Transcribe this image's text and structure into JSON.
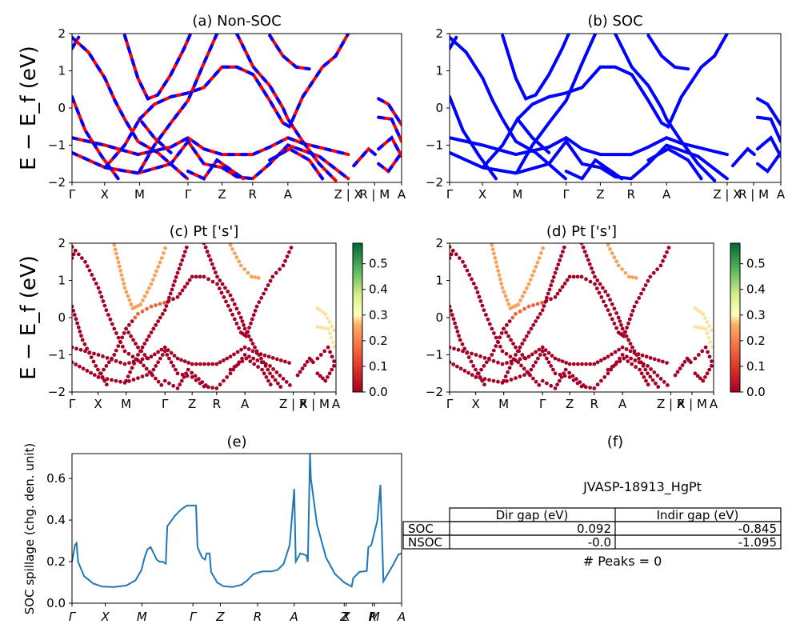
{
  "panels": {
    "a": {
      "title": "(a) Non-SOC"
    },
    "b": {
      "title": "(b) SOC"
    },
    "c": {
      "title": "(c)  Pt ['s']"
    },
    "d": {
      "title": "(d) Pt ['s']"
    },
    "e": {
      "title": "(e)",
      "ylabel": "SOC spillage (chg. den. unit)"
    },
    "f": {
      "title": "(f)"
    }
  },
  "band_ylabel": "E − E_f (eV)",
  "band_yticks": [
    "2",
    "1",
    "0",
    "−1",
    "−2"
  ],
  "kpath_labels": [
    "Γ",
    "X",
    "M",
    "Γ",
    "Z",
    "R",
    "A",
    "Z | X",
    "R | M",
    "A"
  ],
  "colorbar_ticks": [
    "0.5",
    "0.4",
    "0.3",
    "0.2",
    "0.1",
    "0.0"
  ],
  "colors": {
    "nonsoc_band": "#ff0000",
    "soc_band": "#0000ff",
    "spillage_line": "#1f77b4"
  },
  "spillage_yticks": [
    "0.6",
    "0.4",
    "0.2",
    "0.0"
  ],
  "spillage_xticks": [
    "Γ",
    "X",
    "M",
    "Γ",
    "Z",
    "R",
    "A",
    "Z",
    "X",
    "R",
    "M",
    "A"
  ],
  "table": {
    "title": "JVASP-18913_HgPt",
    "headers": [
      "",
      "Dir gap (eV)",
      "Indir gap (eV)"
    ],
    "rows": [
      {
        "label": "SOC",
        "dir": "0.092",
        "indir": "-0.845"
      },
      {
        "label": "NSOC",
        "dir": "-0.0",
        "indir": "-1.095"
      }
    ],
    "peaks": "# Peaks = 0"
  },
  "chart_data": [
    {
      "type": "line",
      "title": "(a) Non-SOC",
      "ylabel": "E − E_f (eV)",
      "ylim": [
        -2,
        2
      ],
      "xticks": [
        "Γ",
        "X",
        "M",
        "Γ",
        "Z",
        "R",
        "A",
        "Z | X",
        "R | M",
        "A"
      ]
    },
    {
      "type": "line",
      "title": "(b) SOC",
      "ylim": [
        -2,
        2
      ],
      "xticks": [
        "Γ",
        "X",
        "M",
        "Γ",
        "Z",
        "R",
        "A",
        "Z | X",
        "R | M",
        "A"
      ]
    },
    {
      "type": "scatter",
      "title": "(c)  Pt ['s']",
      "ylabel": "E − E_f (eV)",
      "ylim": [
        -2,
        2
      ],
      "colorbar_range": [
        0,
        0.58
      ]
    },
    {
      "type": "scatter",
      "title": "(d) Pt ['s']",
      "ylim": [
        -2,
        2
      ],
      "colorbar_range": [
        0,
        0.58
      ]
    },
    {
      "type": "line",
      "title": "(e)",
      "ylabel": "SOC spillage (chg. den. unit)",
      "ylim": [
        0,
        0.72
      ],
      "x": [
        "Γ",
        "X",
        "M",
        "Γ",
        "Z",
        "R",
        "A",
        "Z",
        "X",
        "R",
        "M",
        "A"
      ],
      "spillage_points": [
        [
          0.0,
          0.2
        ],
        [
          0.01,
          0.28
        ],
        [
          0.015,
          0.29
        ],
        [
          0.02,
          0.2
        ],
        [
          0.04,
          0.13
        ],
        [
          0.07,
          0.095
        ],
        [
          0.1,
          0.08
        ],
        [
          0.14,
          0.078
        ],
        [
          0.18,
          0.085
        ],
        [
          0.21,
          0.11
        ],
        [
          0.23,
          0.16
        ],
        [
          0.24,
          0.22
        ],
        [
          0.25,
          0.26
        ],
        [
          0.26,
          0.27
        ],
        [
          0.27,
          0.24
        ],
        [
          0.28,
          0.21
        ],
        [
          0.29,
          0.2
        ],
        [
          0.3,
          0.2
        ],
        [
          0.31,
          0.19
        ],
        [
          0.315,
          0.37
        ],
        [
          0.34,
          0.42
        ],
        [
          0.36,
          0.45
        ],
        [
          0.38,
          0.47
        ],
        [
          0.4,
          0.47
        ],
        [
          0.41,
          0.47
        ],
        [
          0.415,
          0.27
        ],
        [
          0.43,
          0.22
        ],
        [
          0.44,
          0.21
        ],
        [
          0.445,
          0.24
        ],
        [
          0.455,
          0.24
        ],
        [
          0.46,
          0.15
        ],
        [
          0.48,
          0.1
        ],
        [
          0.5,
          0.082
        ],
        [
          0.53,
          0.078
        ],
        [
          0.56,
          0.088
        ],
        [
          0.58,
          0.11
        ],
        [
          0.6,
          0.14
        ],
        [
          0.63,
          0.153
        ],
        [
          0.66,
          0.153
        ],
        [
          0.68,
          0.16
        ],
        [
          0.7,
          0.19
        ],
        [
          0.72,
          0.28
        ],
        [
          0.735,
          0.55
        ],
        [
          0.74,
          0.2
        ],
        [
          0.755,
          0.24
        ],
        [
          0.775,
          0.23
        ],
        [
          0.78,
          0.2
        ],
        [
          0.787,
          0.72
        ],
        [
          0.79,
          0.6
        ],
        [
          0.81,
          0.38
        ],
        [
          0.84,
          0.22
        ],
        [
          0.87,
          0.14
        ],
        [
          0.9,
          0.1
        ],
        [
          0.925,
          0.08
        ],
        [
          0.93,
          0.12
        ],
        [
          0.95,
          0.15
        ],
        [
          0.975,
          0.155
        ],
        [
          0.98,
          0.27
        ],
        [
          0.99,
          0.28
        ],
        [
          1.01,
          0.4
        ],
        [
          1.02,
          0.57
        ],
        [
          1.03,
          0.105
        ],
        [
          1.06,
          0.18
        ],
        [
          1.08,
          0.235
        ],
        [
          1.09,
          0.24
        ]
      ]
    }
  ]
}
